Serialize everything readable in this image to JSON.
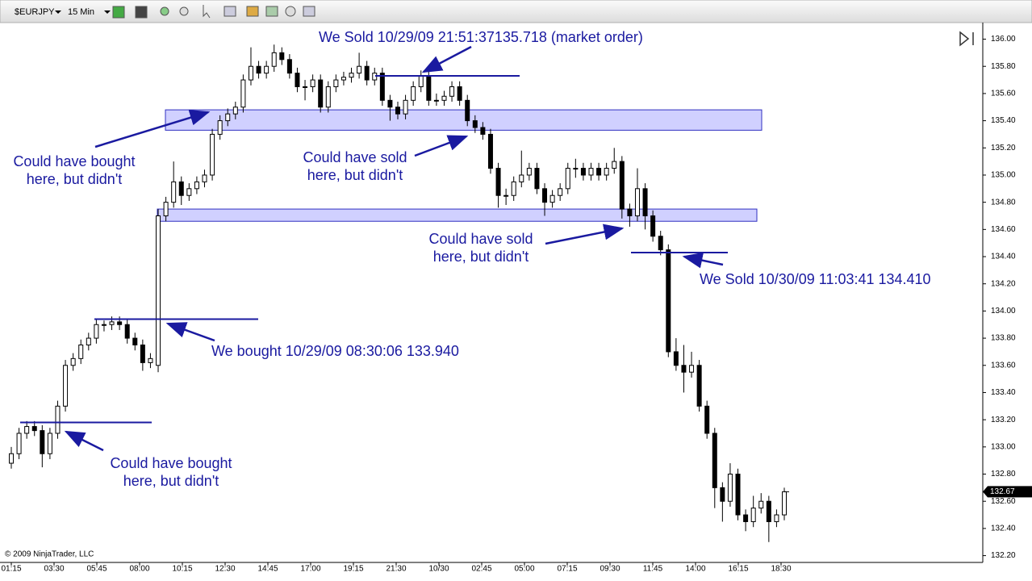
{
  "toolbar": {
    "instrument": "$EURJPY",
    "interval": "15 Min"
  },
  "chart_data": {
    "type": "candlestick",
    "ohlc": [
      [
        132.88,
        133.0,
        132.84,
        132.95
      ],
      [
        132.95,
        133.14,
        132.91,
        133.1
      ],
      [
        133.1,
        133.19,
        133.06,
        133.15
      ],
      [
        133.15,
        133.19,
        133.08,
        133.12
      ],
      [
        133.12,
        133.16,
        132.85,
        132.95
      ],
      [
        132.95,
        133.14,
        132.91,
        133.1
      ],
      [
        133.1,
        133.34,
        133.06,
        133.3
      ],
      [
        133.3,
        133.64,
        133.26,
        133.6
      ],
      [
        133.6,
        133.69,
        133.56,
        133.65
      ],
      [
        133.65,
        133.79,
        133.61,
        133.75
      ],
      [
        133.75,
        133.84,
        133.71,
        133.8
      ],
      [
        133.8,
        133.94,
        133.76,
        133.9
      ],
      [
        133.9,
        133.93,
        133.85,
        133.9
      ],
      [
        133.9,
        133.96,
        133.86,
        133.92
      ],
      [
        133.92,
        133.96,
        133.86,
        133.9
      ],
      [
        133.9,
        133.94,
        133.76,
        133.8
      ],
      [
        133.8,
        133.84,
        133.71,
        133.75
      ],
      [
        133.75,
        133.79,
        133.56,
        133.62
      ],
      [
        133.62,
        133.69,
        133.58,
        133.65
      ],
      [
        133.6,
        134.75,
        133.55,
        134.7
      ],
      [
        134.7,
        134.84,
        134.66,
        134.8
      ],
      [
        134.8,
        135.1,
        134.76,
        134.95
      ],
      [
        134.95,
        134.99,
        134.78,
        134.85
      ],
      [
        134.85,
        134.94,
        134.81,
        134.9
      ],
      [
        134.9,
        134.99,
        134.86,
        134.95
      ],
      [
        134.95,
        135.04,
        134.91,
        135.0
      ],
      [
        135.0,
        135.34,
        134.96,
        135.3
      ],
      [
        135.3,
        135.44,
        135.26,
        135.4
      ],
      [
        135.4,
        135.49,
        135.36,
        135.45
      ],
      [
        135.45,
        135.54,
        135.41,
        135.5
      ],
      [
        135.5,
        135.74,
        135.46,
        135.7
      ],
      [
        135.7,
        135.94,
        135.66,
        135.8
      ],
      [
        135.8,
        135.84,
        135.71,
        135.75
      ],
      [
        135.75,
        135.84,
        135.71,
        135.8
      ],
      [
        135.8,
        135.96,
        135.76,
        135.9
      ],
      [
        135.9,
        135.94,
        135.81,
        135.85
      ],
      [
        135.85,
        135.89,
        135.71,
        135.75
      ],
      [
        135.75,
        135.79,
        135.61,
        135.65
      ],
      [
        135.65,
        135.7,
        135.55,
        135.65
      ],
      [
        135.65,
        135.74,
        135.61,
        135.7
      ],
      [
        135.7,
        135.74,
        135.46,
        135.5
      ],
      [
        135.5,
        135.69,
        135.46,
        135.65
      ],
      [
        135.65,
        135.74,
        135.61,
        135.7
      ],
      [
        135.7,
        135.76,
        135.66,
        135.72
      ],
      [
        135.72,
        135.79,
        135.68,
        135.75
      ],
      [
        135.75,
        135.9,
        135.71,
        135.8
      ],
      [
        135.8,
        135.84,
        135.66,
        135.7
      ],
      [
        135.7,
        135.79,
        135.66,
        135.75
      ],
      [
        135.75,
        135.79,
        135.51,
        135.55
      ],
      [
        135.55,
        135.59,
        135.4,
        135.5
      ],
      [
        135.5,
        135.54,
        135.41,
        135.45
      ],
      [
        135.45,
        135.59,
        135.41,
        135.55
      ],
      [
        135.55,
        135.69,
        135.51,
        135.65
      ],
      [
        135.65,
        135.77,
        135.61,
        135.73
      ],
      [
        135.73,
        135.77,
        135.51,
        135.55
      ],
      [
        135.55,
        135.6,
        135.51,
        135.55
      ],
      [
        135.55,
        135.62,
        135.51,
        135.58
      ],
      [
        135.58,
        135.69,
        135.54,
        135.65
      ],
      [
        135.65,
        135.69,
        135.51,
        135.55
      ],
      [
        135.55,
        135.59,
        135.36,
        135.4
      ],
      [
        135.4,
        135.44,
        135.31,
        135.35
      ],
      [
        135.35,
        135.39,
        135.26,
        135.3
      ],
      [
        135.3,
        135.34,
        135.01,
        135.05
      ],
      [
        135.05,
        135.09,
        134.76,
        134.85
      ],
      [
        134.85,
        134.9,
        134.78,
        134.85
      ],
      [
        134.85,
        134.99,
        134.81,
        134.95
      ],
      [
        134.95,
        135.18,
        134.91,
        135.0
      ],
      [
        135.0,
        135.09,
        134.96,
        135.05
      ],
      [
        135.05,
        135.09,
        134.86,
        134.9
      ],
      [
        134.9,
        134.94,
        134.7,
        134.8
      ],
      [
        134.8,
        134.89,
        134.76,
        134.85
      ],
      [
        134.85,
        134.94,
        134.81,
        134.9
      ],
      [
        134.9,
        135.09,
        134.86,
        135.05
      ],
      [
        135.05,
        135.12,
        134.98,
        135.05
      ],
      [
        135.05,
        135.09,
        134.96,
        135.0
      ],
      [
        135.0,
        135.09,
        134.96,
        135.05
      ],
      [
        135.05,
        135.09,
        134.96,
        135.0
      ],
      [
        135.0,
        135.09,
        134.96,
        135.05
      ],
      [
        135.05,
        135.2,
        135.01,
        135.1
      ],
      [
        135.1,
        135.14,
        134.68,
        134.75
      ],
      [
        134.75,
        134.79,
        134.62,
        134.7
      ],
      [
        134.7,
        135.05,
        134.66,
        134.9
      ],
      [
        134.9,
        134.94,
        134.6,
        134.7
      ],
      [
        134.7,
        134.74,
        134.51,
        134.55
      ],
      [
        134.55,
        134.59,
        134.41,
        134.45
      ],
      [
        134.45,
        134.49,
        133.66,
        133.7
      ],
      [
        133.7,
        133.8,
        133.56,
        133.6
      ],
      [
        133.6,
        133.75,
        133.4,
        133.55
      ],
      [
        133.55,
        133.7,
        133.51,
        133.6
      ],
      [
        133.6,
        133.64,
        133.26,
        133.3
      ],
      [
        133.3,
        133.34,
        133.06,
        133.1
      ],
      [
        133.1,
        133.14,
        132.55,
        132.7
      ],
      [
        132.7,
        132.74,
        132.45,
        132.6
      ],
      [
        132.6,
        132.88,
        132.56,
        132.8
      ],
      [
        132.8,
        132.84,
        132.46,
        132.5
      ],
      [
        132.5,
        132.54,
        132.38,
        132.45
      ],
      [
        132.45,
        132.64,
        132.41,
        132.55
      ],
      [
        132.55,
        132.66,
        132.51,
        132.6
      ],
      [
        132.6,
        132.64,
        132.3,
        132.45
      ],
      [
        132.45,
        132.54,
        132.41,
        132.5
      ],
      [
        132.5,
        132.7,
        132.46,
        132.67
      ]
    ],
    "up_color": "#ffffff",
    "down_color": "#000000",
    "ylim": [
      132.15,
      136.11
    ],
    "yticks": [
      {
        "value": 132.2,
        "label": "132.20"
      },
      {
        "value": 132.4,
        "label": "132.40"
      },
      {
        "value": 132.6,
        "label": "132.60"
      },
      {
        "value": 132.8,
        "label": "132.80"
      },
      {
        "value": 133.0,
        "label": "133.00"
      },
      {
        "value": 133.2,
        "label": "133.20"
      },
      {
        "value": 133.4,
        "label": "133.40"
      },
      {
        "value": 133.6,
        "label": "133.60"
      },
      {
        "value": 133.8,
        "label": "133.80"
      },
      {
        "value": 134.0,
        "label": "134.00"
      },
      {
        "value": 134.2,
        "label": "134.20"
      },
      {
        "value": 134.4,
        "label": "134.40"
      },
      {
        "value": 134.6,
        "label": "134.60"
      },
      {
        "value": 134.8,
        "label": "134.80"
      },
      {
        "value": 135.0,
        "label": "135.00"
      },
      {
        "value": 135.2,
        "label": "135.20"
      },
      {
        "value": 135.4,
        "label": "135.40"
      },
      {
        "value": 135.6,
        "label": "135.60"
      },
      {
        "value": 135.8,
        "label": "135.80"
      },
      {
        "value": 136.0,
        "label": "136.00"
      }
    ],
    "x_labels": [
      "01:15",
      "03:30",
      "05:45",
      "08:00",
      "10:15",
      "12:30",
      "14:45",
      "17:00",
      "19:15",
      "21:30",
      "10/30",
      "02:45",
      "05:00",
      "07:15",
      "09:30",
      "11:45",
      "14:00",
      "16:15",
      "18:30"
    ],
    "last_price": {
      "value": 132.67,
      "label": "132.67"
    },
    "zones": [
      {
        "low": 135.33,
        "high": 135.48
      },
      {
        "low": 134.66,
        "high": 134.75
      }
    ],
    "levels": [
      133.18,
      133.94,
      135.73,
      134.43
    ],
    "zone_color": "#c8c8ff",
    "annotation_color": "#1a1aa0",
    "annotations": [
      {
        "lines": [
          "Could have bought",
          "here, but didn't"
        ]
      },
      {
        "lines": [
          "We bought 10/29/09 08:30:06 133.940"
        ]
      },
      {
        "lines": [
          "Could have bought",
          "here, but didn't"
        ]
      },
      {
        "lines": [
          "We Sold 10/29/09 21:51:37135.718 (market order)"
        ]
      },
      {
        "lines": [
          "Could have sold",
          "here, but didn't"
        ]
      },
      {
        "lines": [
          "Could have sold",
          "here, but didn't"
        ]
      },
      {
        "lines": [
          "We Sold 10/30/09 11:03:41   134.410"
        ]
      }
    ],
    "copyright": "© 2009 NinjaTrader, LLC"
  }
}
